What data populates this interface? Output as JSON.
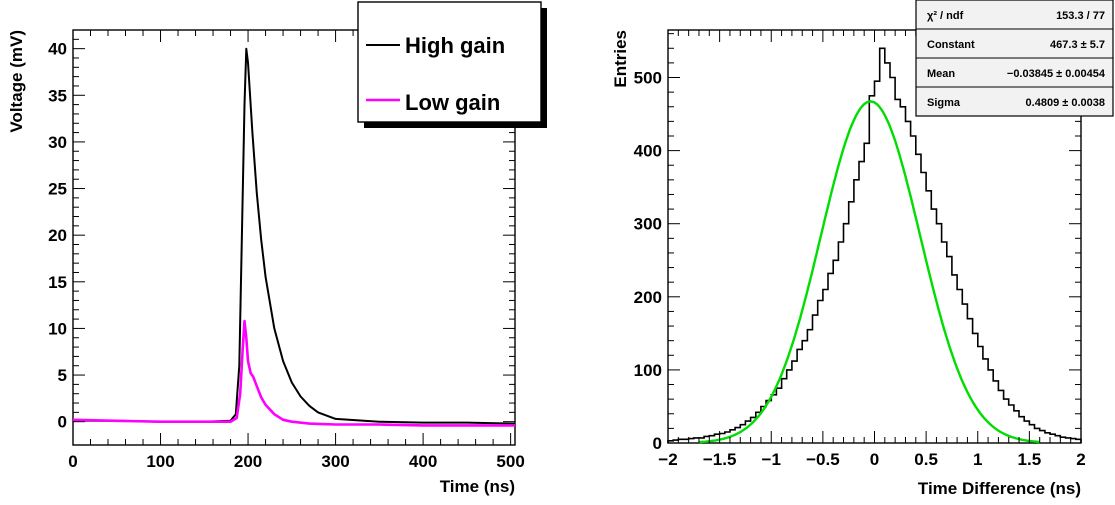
{
  "chart_data": [
    {
      "type": "line",
      "xlabel": "Time (ns)",
      "ylabel": "Voltage (mV)",
      "xlim": [
        0,
        505
      ],
      "ylim": [
        -2.5,
        42
      ],
      "xticks": [
        0,
        100,
        200,
        300,
        400,
        500
      ],
      "xtick_labels": [
        "0",
        "100",
        "200",
        "300",
        "400",
        "500"
      ],
      "yticks": [
        0,
        5,
        10,
        15,
        20,
        25,
        30,
        35,
        40
      ],
      "ytick_labels": [
        "0",
        "5",
        "10",
        "15",
        "20",
        "25",
        "30",
        "35",
        "40"
      ],
      "legend_position": "top-right",
      "series": [
        {
          "name": "High gain",
          "color": "#000000",
          "x": [
            0,
            50,
            100,
            150,
            180,
            186,
            190,
            193,
            196,
            198,
            200,
            205,
            210,
            215,
            220,
            230,
            240,
            250,
            260,
            270,
            280,
            300,
            350,
            400,
            450,
            505
          ],
          "y": [
            0.1,
            0.1,
            0.0,
            0.0,
            0.1,
            0.8,
            6.0,
            20.0,
            34.0,
            40.0,
            38.5,
            31.0,
            24.5,
            19.5,
            15.5,
            10.0,
            6.5,
            4.2,
            2.7,
            1.7,
            1.0,
            0.3,
            0.0,
            -0.1,
            -0.1,
            -0.2
          ]
        },
        {
          "name": "Low gain",
          "color": "#ff00ff",
          "x": [
            0,
            50,
            100,
            150,
            180,
            187,
            191,
            194,
            196,
            198,
            200,
            203,
            206,
            210,
            215,
            220,
            230,
            240,
            250,
            270,
            300,
            350,
            400,
            450,
            505
          ],
          "y": [
            0.2,
            0.1,
            0.0,
            0.0,
            0.0,
            0.4,
            3.0,
            8.0,
            10.8,
            9.0,
            6.5,
            5.2,
            4.8,
            3.8,
            2.6,
            1.8,
            0.8,
            0.2,
            0.0,
            -0.2,
            -0.3,
            -0.3,
            -0.4,
            -0.4,
            -0.4
          ]
        }
      ]
    },
    {
      "type": "bar",
      "xlabel": "Time Difference (ns)",
      "ylabel": "Entries",
      "xlim": [
        -2,
        2
      ],
      "ylim": [
        0,
        565
      ],
      "xticks": [
        -2,
        -1.5,
        -1,
        -0.5,
        0,
        0.5,
        1,
        1.5,
        2
      ],
      "xtick_labels": [
        "−2",
        "−1.5",
        "−1",
        "−0.5",
        "0",
        "0.5",
        "1",
        "1.5",
        "2"
      ],
      "yticks": [
        0,
        100,
        200,
        300,
        400,
        500
      ],
      "ytick_labels": [
        "0",
        "100",
        "200",
        "300",
        "400",
        "500"
      ],
      "histogram_color": "#000000",
      "fit_color": "#00dd00",
      "histogram": {
        "bin_width": 0.05,
        "bin_start": -2.0,
        "counts": [
          3,
          4,
          5,
          5,
          6,
          7,
          7,
          9,
          10,
          12,
          13,
          15,
          18,
          21,
          25,
          30,
          35,
          42,
          50,
          58,
          66,
          75,
          88,
          100,
          112,
          128,
          140,
          155,
          175,
          195,
          210,
          232,
          250,
          275,
          300,
          330,
          360,
          385,
          410,
          475,
          495,
          540,
          520,
          500,
          470,
          460,
          440,
          420,
          395,
          370,
          345,
          320,
          300,
          275,
          255,
          230,
          210,
          190,
          170,
          150,
          132,
          115,
          100,
          85,
          72,
          60,
          52,
          44,
          36,
          30,
          25,
          20,
          17,
          14,
          12,
          10,
          8,
          7,
          6,
          5
        ]
      },
      "fit": {
        "function": "gaus",
        "constant": 467.3,
        "mean": -0.03845,
        "sigma": 0.4809
      },
      "stats_box": {
        "position": "top-right",
        "rows": [
          {
            "label": "χ² / ndf",
            "value": "153.3 / 77"
          },
          {
            "label": "Constant",
            "value": "467.3 ± 5.7"
          },
          {
            "label": "Mean",
            "value": "−0.03845 ± 0.00454"
          },
          {
            "label": "Sigma",
            "value": "0.4809 ± 0.0038"
          }
        ]
      }
    }
  ]
}
